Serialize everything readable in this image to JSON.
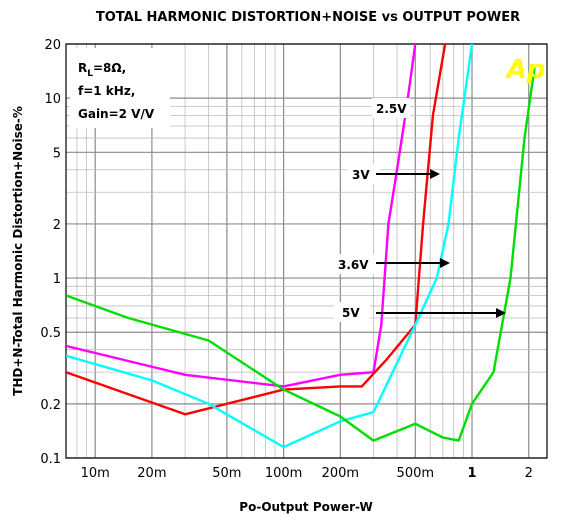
{
  "chart_data": {
    "type": "line",
    "title": "TOTAL HARMONIC DISTORTION+NOISE vs OUTPUT POWER",
    "xlabel": "Po-Output Power-W",
    "ylabel": "THD+N-Total Harmonic Distortion+Noise-%",
    "x_scale": "log",
    "y_scale": "log",
    "xlim": [
      0.007,
      2.5
    ],
    "ylim": [
      0.1,
      20
    ],
    "x_ticks": [
      {
        "value": 0.01,
        "label": "10m",
        "bold": false
      },
      {
        "value": 0.02,
        "label": "20m",
        "bold": false
      },
      {
        "value": 0.05,
        "label": "50m",
        "bold": false
      },
      {
        "value": 0.1,
        "label": "100m",
        "bold": false
      },
      {
        "value": 0.2,
        "label": "200m",
        "bold": false
      },
      {
        "value": 0.5,
        "label": "500m",
        "bold": false
      },
      {
        "value": 1,
        "label": "1",
        "bold": true
      },
      {
        "value": 2,
        "label": "2",
        "bold": false
      }
    ],
    "y_ticks": [
      {
        "value": 0.1,
        "label": "0.1"
      },
      {
        "value": 0.2,
        "label": "0.2"
      },
      {
        "value": 0.5,
        "label": "0.5"
      },
      {
        "value": 1,
        "label": "1"
      },
      {
        "value": 2,
        "label": "2"
      },
      {
        "value": 5,
        "label": "5"
      },
      {
        "value": 10,
        "label": "10"
      },
      {
        "value": 20,
        "label": "20"
      }
    ],
    "grid": true,
    "conditions": [
      "Gain=2 V/V"
    ],
    "condition_rl": {
      "prefix": "R",
      "sub": "L",
      "suffix": "=8Ω,"
    },
    "condition_f": "f=1 kHz,",
    "logo": "Ap",
    "series": [
      {
        "name": "2.5V",
        "color": "#ff00ff",
        "points": [
          [
            0.007,
            0.42
          ],
          [
            0.03,
            0.29
          ],
          [
            0.1,
            0.25
          ],
          [
            0.2,
            0.29
          ],
          [
            0.3,
            0.3
          ],
          [
            0.33,
            0.55
          ],
          [
            0.36,
            2.0
          ],
          [
            0.4,
            4.0
          ],
          [
            0.45,
            9.0
          ],
          [
            0.5,
            20.0
          ]
        ]
      },
      {
        "name": "3V",
        "color": "#ff0000",
        "points": [
          [
            0.007,
            0.3
          ],
          [
            0.03,
            0.175
          ],
          [
            0.05,
            0.2
          ],
          [
            0.1,
            0.24
          ],
          [
            0.2,
            0.25
          ],
          [
            0.26,
            0.25
          ],
          [
            0.35,
            0.35
          ],
          [
            0.5,
            0.55
          ],
          [
            0.55,
            2.0
          ],
          [
            0.62,
            8.0
          ],
          [
            0.72,
            20.0
          ]
        ]
      },
      {
        "name": "3.6V",
        "color": "#00ffff",
        "points": [
          [
            0.007,
            0.37
          ],
          [
            0.02,
            0.27
          ],
          [
            0.04,
            0.2
          ],
          [
            0.1,
            0.115
          ],
          [
            0.2,
            0.16
          ],
          [
            0.3,
            0.18
          ],
          [
            0.5,
            0.55
          ],
          [
            0.65,
            1.0
          ],
          [
            0.75,
            2.0
          ],
          [
            0.85,
            6.0
          ],
          [
            1.0,
            20.0
          ]
        ]
      },
      {
        "name": "5V",
        "color": "#00dd00",
        "points": [
          [
            0.007,
            0.8
          ],
          [
            0.015,
            0.6
          ],
          [
            0.04,
            0.45
          ],
          [
            0.1,
            0.24
          ],
          [
            0.2,
            0.17
          ],
          [
            0.3,
            0.125
          ],
          [
            0.5,
            0.155
          ],
          [
            0.7,
            0.13
          ],
          [
            0.85,
            0.125
          ],
          [
            1.0,
            0.2
          ],
          [
            1.3,
            0.3
          ],
          [
            1.6,
            1.0
          ],
          [
            1.9,
            6.0
          ],
          [
            2.15,
            15.0
          ]
        ]
      }
    ],
    "annotations": [
      {
        "text": "2.5V",
        "target": "2.5V",
        "arrow": false
      },
      {
        "text": "3V",
        "target": "3V",
        "arrow": true
      },
      {
        "text": "3.6V",
        "target": "3.6V",
        "arrow": true
      },
      {
        "text": "5V",
        "target": "5V",
        "arrow": true
      }
    ]
  }
}
